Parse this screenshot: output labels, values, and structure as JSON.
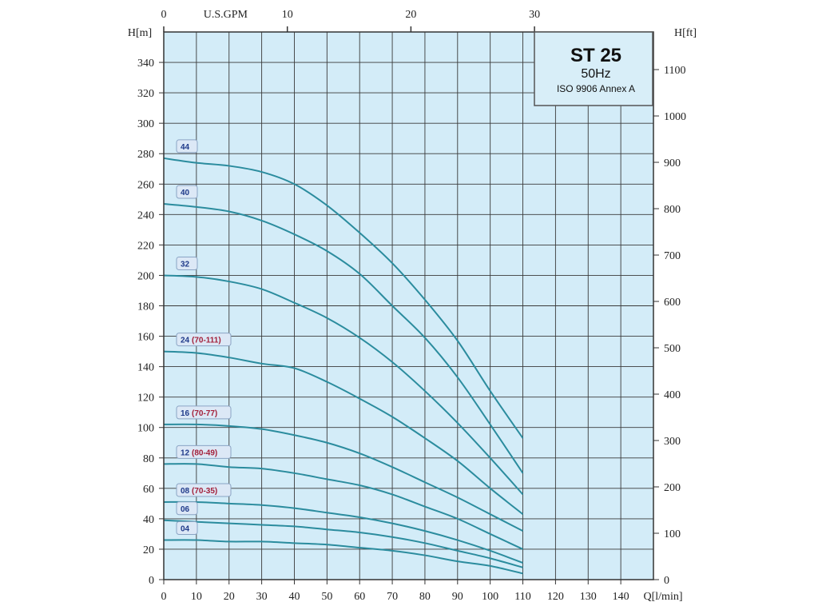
{
  "chart_data": {
    "type": "line",
    "title": "ST 25",
    "subtitle": "50Hz",
    "standard": "ISO 9906 Annex A",
    "xlabel": "Q[l/min]",
    "ylabel_left": "H[m]",
    "ylabel_right": "H[ft]",
    "x2label": "U.S.GPM",
    "xlim": [
      0,
      150
    ],
    "ylim": [
      0,
      360
    ],
    "x_ticks": [
      0,
      10,
      20,
      30,
      40,
      50,
      60,
      70,
      80,
      90,
      100,
      110,
      120,
      130,
      140
    ],
    "y_ticks": [
      0,
      20,
      40,
      60,
      80,
      100,
      120,
      140,
      160,
      180,
      200,
      220,
      240,
      260,
      280,
      300,
      320,
      340
    ],
    "y2_ticks": [
      0,
      100,
      200,
      300,
      400,
      500,
      600,
      700,
      800,
      900,
      1000,
      1100
    ],
    "x2_ticks": [
      0,
      10,
      20,
      30
    ],
    "grid": true,
    "colors": {
      "plot_bg": "#d3ecf8",
      "grid": "#3a3a3a",
      "curve": "#2b8c9e",
      "label_bg": "#dce8f6"
    },
    "x": [
      0,
      10,
      20,
      30,
      40,
      50,
      60,
      70,
      80,
      90,
      100,
      110
    ],
    "series": [
      {
        "name": "44",
        "sub": "",
        "values": [
          277,
          274,
          272,
          268,
          260,
          246,
          228,
          208,
          184,
          157,
          124,
          93
        ]
      },
      {
        "name": "40",
        "sub": "",
        "values": [
          247,
          245,
          242,
          236,
          227,
          216,
          201,
          180,
          159,
          133,
          102,
          70
        ]
      },
      {
        "name": "32",
        "sub": "",
        "values": [
          200,
          199,
          196,
          191,
          182,
          172,
          159,
          143,
          124,
          103,
          80,
          56
        ]
      },
      {
        "name": "24",
        "sub": "(70-111)",
        "values": [
          150,
          149,
          146,
          142,
          139,
          130,
          119,
          107,
          93,
          78,
          60,
          43
        ]
      },
      {
        "name": "16",
        "sub": "(70-77)",
        "values": [
          102,
          102,
          101,
          99,
          95,
          90,
          83,
          74,
          64,
          54,
          43,
          32
        ]
      },
      {
        "name": "12",
        "sub": "(80-49)",
        "values": [
          76,
          76,
          74,
          73,
          70,
          66,
          62,
          56,
          48,
          40,
          30,
          20
        ]
      },
      {
        "name": "08",
        "sub": "(70-35)",
        "values": [
          51,
          51,
          50,
          49,
          47,
          44,
          41,
          37,
          32,
          26,
          19,
          11
        ]
      },
      {
        "name": "06",
        "sub": "",
        "values": [
          39,
          38,
          37,
          36,
          35,
          33,
          31,
          28,
          24,
          19,
          14,
          8
        ]
      },
      {
        "name": "04",
        "sub": "",
        "values": [
          26,
          26,
          25,
          25,
          24,
          23,
          21,
          19,
          16,
          12,
          9,
          4
        ]
      }
    ]
  }
}
